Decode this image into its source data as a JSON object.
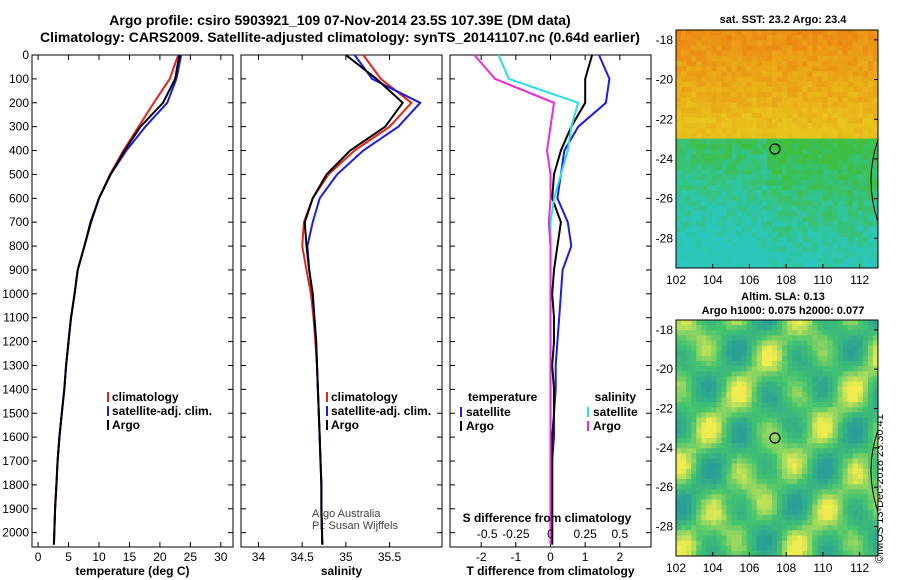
{
  "header": {
    "title_line1": "Argo profile: csiro 5903921_109 07-Nov-2014 23.5S 107.39E (DM data)",
    "title_line2": "Climatology: CARS2009. Satellite-adjusted climatology: synTS_20141107.nc (0.64d earlier)"
  },
  "colors": {
    "climatology": "#e8221c",
    "satellite": "#1c1ce6",
    "argo": "#000000",
    "satellite_salinity": "#28e0ea",
    "argo_salinity": "#ee2ad8"
  },
  "chart_data": [
    {
      "type": "line",
      "xlabel": "temperature (deg C)",
      "ylabel": "",
      "xlim": [
        -1,
        32
      ],
      "ylim": [
        2060,
        0
      ],
      "xticks": [
        0,
        5,
        10,
        15,
        20,
        25,
        30
      ],
      "yticks": [
        0,
        100,
        200,
        300,
        400,
        500,
        600,
        700,
        800,
        900,
        1000,
        1100,
        1200,
        1300,
        1400,
        1500,
        1600,
        1700,
        1800,
        1900,
        2000
      ],
      "legend": [
        "climatology",
        "satellite-adj. clim.",
        "Argo"
      ],
      "series": [
        {
          "name": "climatology",
          "x": [
            23.0,
            21.6,
            19.0,
            16.5,
            14.0,
            11.8,
            10.0,
            8.7,
            7.6,
            6.5,
            6.0,
            5.4,
            5.0,
            4.6,
            4.3,
            3.9,
            3.5,
            3.2,
            3.0,
            2.8,
            2.6
          ],
          "y": [
            0,
            100,
            200,
            300,
            400,
            500,
            600,
            700,
            800,
            900,
            1000,
            1100,
            1200,
            1300,
            1400,
            1500,
            1600,
            1700,
            1800,
            1900,
            2050
          ]
        },
        {
          "name": "satellite-adj. clim.",
          "x": [
            23.5,
            22.7,
            21.2,
            17.6,
            14.5,
            11.9,
            10.0,
            8.7,
            7.6,
            6.5,
            6.0,
            5.4,
            5.0,
            4.6,
            4.3,
            3.9,
            3.5,
            3.2,
            3.0,
            2.8,
            2.6
          ],
          "y": [
            0,
            100,
            200,
            300,
            400,
            500,
            600,
            700,
            800,
            900,
            1000,
            1100,
            1200,
            1300,
            1400,
            1500,
            1600,
            1700,
            1800,
            1900,
            2050
          ]
        },
        {
          "name": "Argo",
          "x": [
            23.2,
            22.5,
            20.5,
            16.8,
            14.2,
            11.9,
            10.0,
            8.6,
            7.6,
            6.5,
            6.0,
            5.4,
            5.0,
            4.6,
            4.3,
            3.9,
            3.5,
            3.2,
            3.0,
            2.8,
            2.6
          ],
          "y": [
            0,
            100,
            200,
            300,
            400,
            500,
            600,
            700,
            800,
            900,
            1000,
            1100,
            1200,
            1300,
            1400,
            1500,
            1600,
            1700,
            1800,
            1900,
            2050
          ]
        }
      ]
    },
    {
      "type": "line",
      "xlabel": "salinity",
      "ylabel": "",
      "xlim": [
        33.8,
        36.1
      ],
      "ylim": [
        2060,
        0
      ],
      "xticks": [
        34,
        34.5,
        35,
        35.5
      ],
      "legend": [
        "climatology",
        "satellite-adj. clim.",
        "Argo"
      ],
      "annotation": [
        "Argo Australia",
        "PI: Susan Wijffels"
      ],
      "series": [
        {
          "name": "climatology",
          "x": [
            35.2,
            35.4,
            35.75,
            35.5,
            35.1,
            34.8,
            34.62,
            34.52,
            34.5,
            34.55,
            34.6,
            34.63,
            34.65,
            34.67,
            34.68,
            34.69,
            34.7,
            34.71,
            34.72,
            34.72,
            34.73
          ],
          "y": [
            0,
            100,
            200,
            300,
            400,
            500,
            600,
            700,
            800,
            900,
            1000,
            1100,
            1200,
            1300,
            1400,
            1500,
            1600,
            1700,
            1800,
            1900,
            2050
          ]
        },
        {
          "name": "satellite-adj. clim.",
          "x": [
            35.1,
            35.3,
            35.85,
            35.6,
            35.2,
            34.9,
            34.7,
            34.62,
            34.56,
            34.58,
            34.62,
            34.64,
            34.66,
            34.67,
            34.68,
            34.69,
            34.7,
            34.71,
            34.72,
            34.72,
            34.73
          ],
          "y": [
            0,
            100,
            200,
            300,
            400,
            500,
            600,
            700,
            800,
            900,
            1000,
            1100,
            1200,
            1300,
            1400,
            1500,
            1600,
            1700,
            1800,
            1900,
            2050
          ]
        },
        {
          "name": "Argo",
          "x": [
            35.0,
            35.35,
            35.65,
            35.45,
            35.05,
            34.78,
            34.62,
            34.53,
            34.55,
            34.58,
            34.62,
            34.64,
            34.66,
            34.67,
            34.68,
            34.69,
            34.7,
            34.71,
            34.72,
            34.72,
            34.73
          ],
          "y": [
            0,
            100,
            200,
            300,
            400,
            500,
            600,
            700,
            800,
            900,
            1000,
            1100,
            1200,
            1300,
            1400,
            1500,
            1600,
            1700,
            1800,
            1900,
            2050
          ]
        }
      ]
    },
    {
      "type": "line",
      "xlabel": "T difference from climatology",
      "ylabel": "",
      "xlim": [
        -2.9,
        2.9
      ],
      "ylim": [
        2060,
        0
      ],
      "xticks": [
        -2,
        -1,
        0,
        1,
        2
      ],
      "top_xlabel": "S difference from climatology",
      "top_xticks": [
        "-0.5",
        "-0.25",
        "0",
        "0.25",
        "0.5"
      ],
      "legend_left_title": "temperature",
      "legend_left": [
        "satellite",
        "Argo"
      ],
      "legend_right_title": "salinity",
      "legend_right": [
        "satellite",
        "Argo"
      ],
      "series": [
        {
          "name": "temperature satellite",
          "x": [
            1.4,
            1.7,
            1.6,
            0.8,
            0.4,
            0.3,
            0.2,
            0.5,
            0.6,
            0.35,
            0.3,
            0.25,
            0.2,
            0.15,
            0.15,
            0.1,
            0.1,
            0.05,
            0.05,
            0.05,
            0.05
          ],
          "y": [
            0,
            100,
            200,
            300,
            400,
            500,
            600,
            700,
            800,
            900,
            1000,
            1100,
            1200,
            1300,
            1400,
            1500,
            1600,
            1700,
            1800,
            1900,
            2050
          ]
        },
        {
          "name": "temperature Argo",
          "x": [
            1.2,
            1.0,
            1.0,
            0.6,
            0.3,
            0.1,
            0.05,
            0.3,
            0.2,
            0.1,
            0.05,
            0.1,
            0.1,
            0.05,
            0.1,
            0.1,
            0.05,
            0.05,
            0.05,
            0.05,
            0.05
          ],
          "y": [
            0,
            100,
            200,
            300,
            400,
            500,
            600,
            700,
            800,
            900,
            1000,
            1100,
            1200,
            1300,
            1400,
            1500,
            1600,
            1700,
            1800,
            1900,
            2050
          ]
        },
        {
          "name": "salinity satellite",
          "x": [
            -1.5,
            -1.2,
            0.8,
            0.6,
            0.5,
            0.3,
            0.1,
            0.0,
            0.0,
            0.0,
            0.0,
            0.0,
            0.0,
            0.0,
            0.0,
            0.0,
            0.0,
            0.0,
            0.0,
            0.0,
            0.0
          ],
          "y": [
            0,
            100,
            200,
            300,
            400,
            500,
            600,
            700,
            800,
            900,
            1000,
            1100,
            1200,
            1300,
            1400,
            1500,
            1600,
            1700,
            1800,
            1900,
            2050
          ]
        },
        {
          "name": "salinity Argo",
          "x": [
            -2.2,
            -1.6,
            0.1,
            0.0,
            -0.1,
            0.0,
            0.0,
            -0.05,
            0.0,
            0.0,
            0.0,
            0.0,
            0.0,
            0.0,
            0.0,
            0.0,
            0.0,
            0.0,
            0.0,
            0.0,
            0.0
          ],
          "y": [
            0,
            100,
            200,
            300,
            400,
            500,
            600,
            700,
            800,
            900,
            1000,
            1100,
            1200,
            1300,
            1400,
            1500,
            1600,
            1700,
            1800,
            1900,
            2050
          ]
        }
      ]
    },
    {
      "type": "heatmap",
      "title": "sat. SST: 23.2 Argo: 23.4",
      "xticks": [
        102,
        104,
        106,
        108,
        110,
        112
      ],
      "yticks": [
        -18,
        -20,
        -22,
        -24,
        -26,
        -28
      ],
      "xlim": [
        102,
        113
      ],
      "ylim": [
        -29.5,
        -17.5
      ],
      "marker": {
        "lon": 107.39,
        "lat": -23.5
      }
    },
    {
      "type": "heatmap",
      "title": "Altim. SLA: 0.13",
      "subtitle": "Argo h1000: 0.075 h2000: 0.077",
      "xticks": [
        102,
        104,
        106,
        108,
        110,
        112
      ],
      "yticks": [
        -18,
        -20,
        -22,
        -24,
        -26,
        -28
      ],
      "xlim": [
        102,
        113
      ],
      "ylim": [
        -29.5,
        -17.5
      ],
      "marker": {
        "lon": 107.39,
        "lat": -23.5
      }
    }
  ],
  "footer": {
    "stamp": "©IMOS 13-Dec-2018 23:30:41"
  }
}
